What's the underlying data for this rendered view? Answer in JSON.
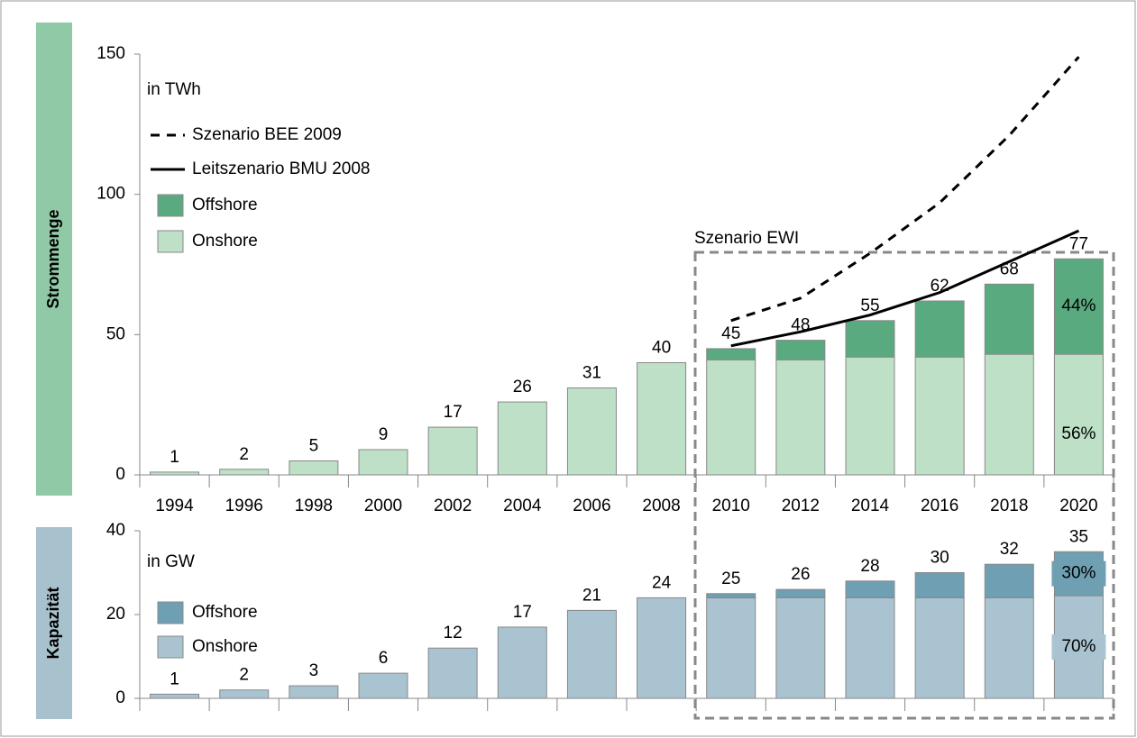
{
  "chart_data": [
    {
      "type": "bar",
      "stacked": true,
      "title": "Strommenge",
      "unit_label": "in TWh",
      "annotation": "Szenario EWI",
      "categories": [
        "1994",
        "1996",
        "1998",
        "2000",
        "2002",
        "2004",
        "2006",
        "2008",
        "2010",
        "2012",
        "2014",
        "2016",
        "2018",
        "2020"
      ],
      "series": [
        {
          "name": "Onshore",
          "type": "bar",
          "color": "#bde0c6",
          "values": [
            1,
            2,
            5,
            9,
            17,
            26,
            31,
            40,
            41,
            41,
            42,
            42,
            43,
            43
          ],
          "share_label": "56%"
        },
        {
          "name": "Offshore",
          "type": "bar",
          "color": "#5aaa80",
          "values": [
            null,
            null,
            null,
            null,
            null,
            null,
            null,
            null,
            4,
            7,
            13,
            20,
            25,
            34
          ],
          "share_label": "44%"
        },
        {
          "name": "Leitszenario BMU 2008",
          "type": "line",
          "dashed": false,
          "color": "#000000",
          "values": [
            null,
            null,
            null,
            null,
            null,
            null,
            null,
            null,
            46,
            51,
            57,
            65,
            76,
            87
          ]
        },
        {
          "name": "Szenario BEE 2009",
          "type": "line",
          "dashed": true,
          "color": "#000000",
          "values": [
            null,
            null,
            null,
            null,
            null,
            null,
            null,
            null,
            55,
            63,
            79,
            97,
            121,
            149
          ]
        }
      ],
      "totals": [
        1,
        2,
        5,
        9,
        17,
        26,
        31,
        40,
        45,
        48,
        55,
        62,
        68,
        77
      ],
      "ylim": [
        0,
        150
      ],
      "yticks": [
        0,
        50,
        100,
        150
      ],
      "grid": false,
      "side_color": "#8fc9a5"
    },
    {
      "type": "bar",
      "stacked": true,
      "title": "Kapazität",
      "unit_label": "in GW",
      "series": [
        {
          "name": "Onshore",
          "type": "bar",
          "color": "#a9c4d0",
          "values": [
            1,
            2,
            3,
            6,
            12,
            17,
            21,
            24,
            24,
            24,
            24,
            24,
            24,
            24.5
          ],
          "share_label": "70%"
        },
        {
          "name": "Offshore",
          "type": "bar",
          "color": "#6f9fb3",
          "values": [
            null,
            null,
            null,
            null,
            null,
            null,
            null,
            null,
            1,
            2,
            4,
            6,
            8,
            10.5
          ],
          "share_label": "30%"
        }
      ],
      "totals": [
        1,
        2,
        3,
        6,
        12,
        17,
        21,
        24,
        25,
        26,
        28,
        30,
        32,
        35
      ],
      "ylim": [
        0,
        40
      ],
      "yticks": [
        0,
        20,
        40
      ],
      "grid": false,
      "side_color": "#a7c1cd"
    }
  ]
}
